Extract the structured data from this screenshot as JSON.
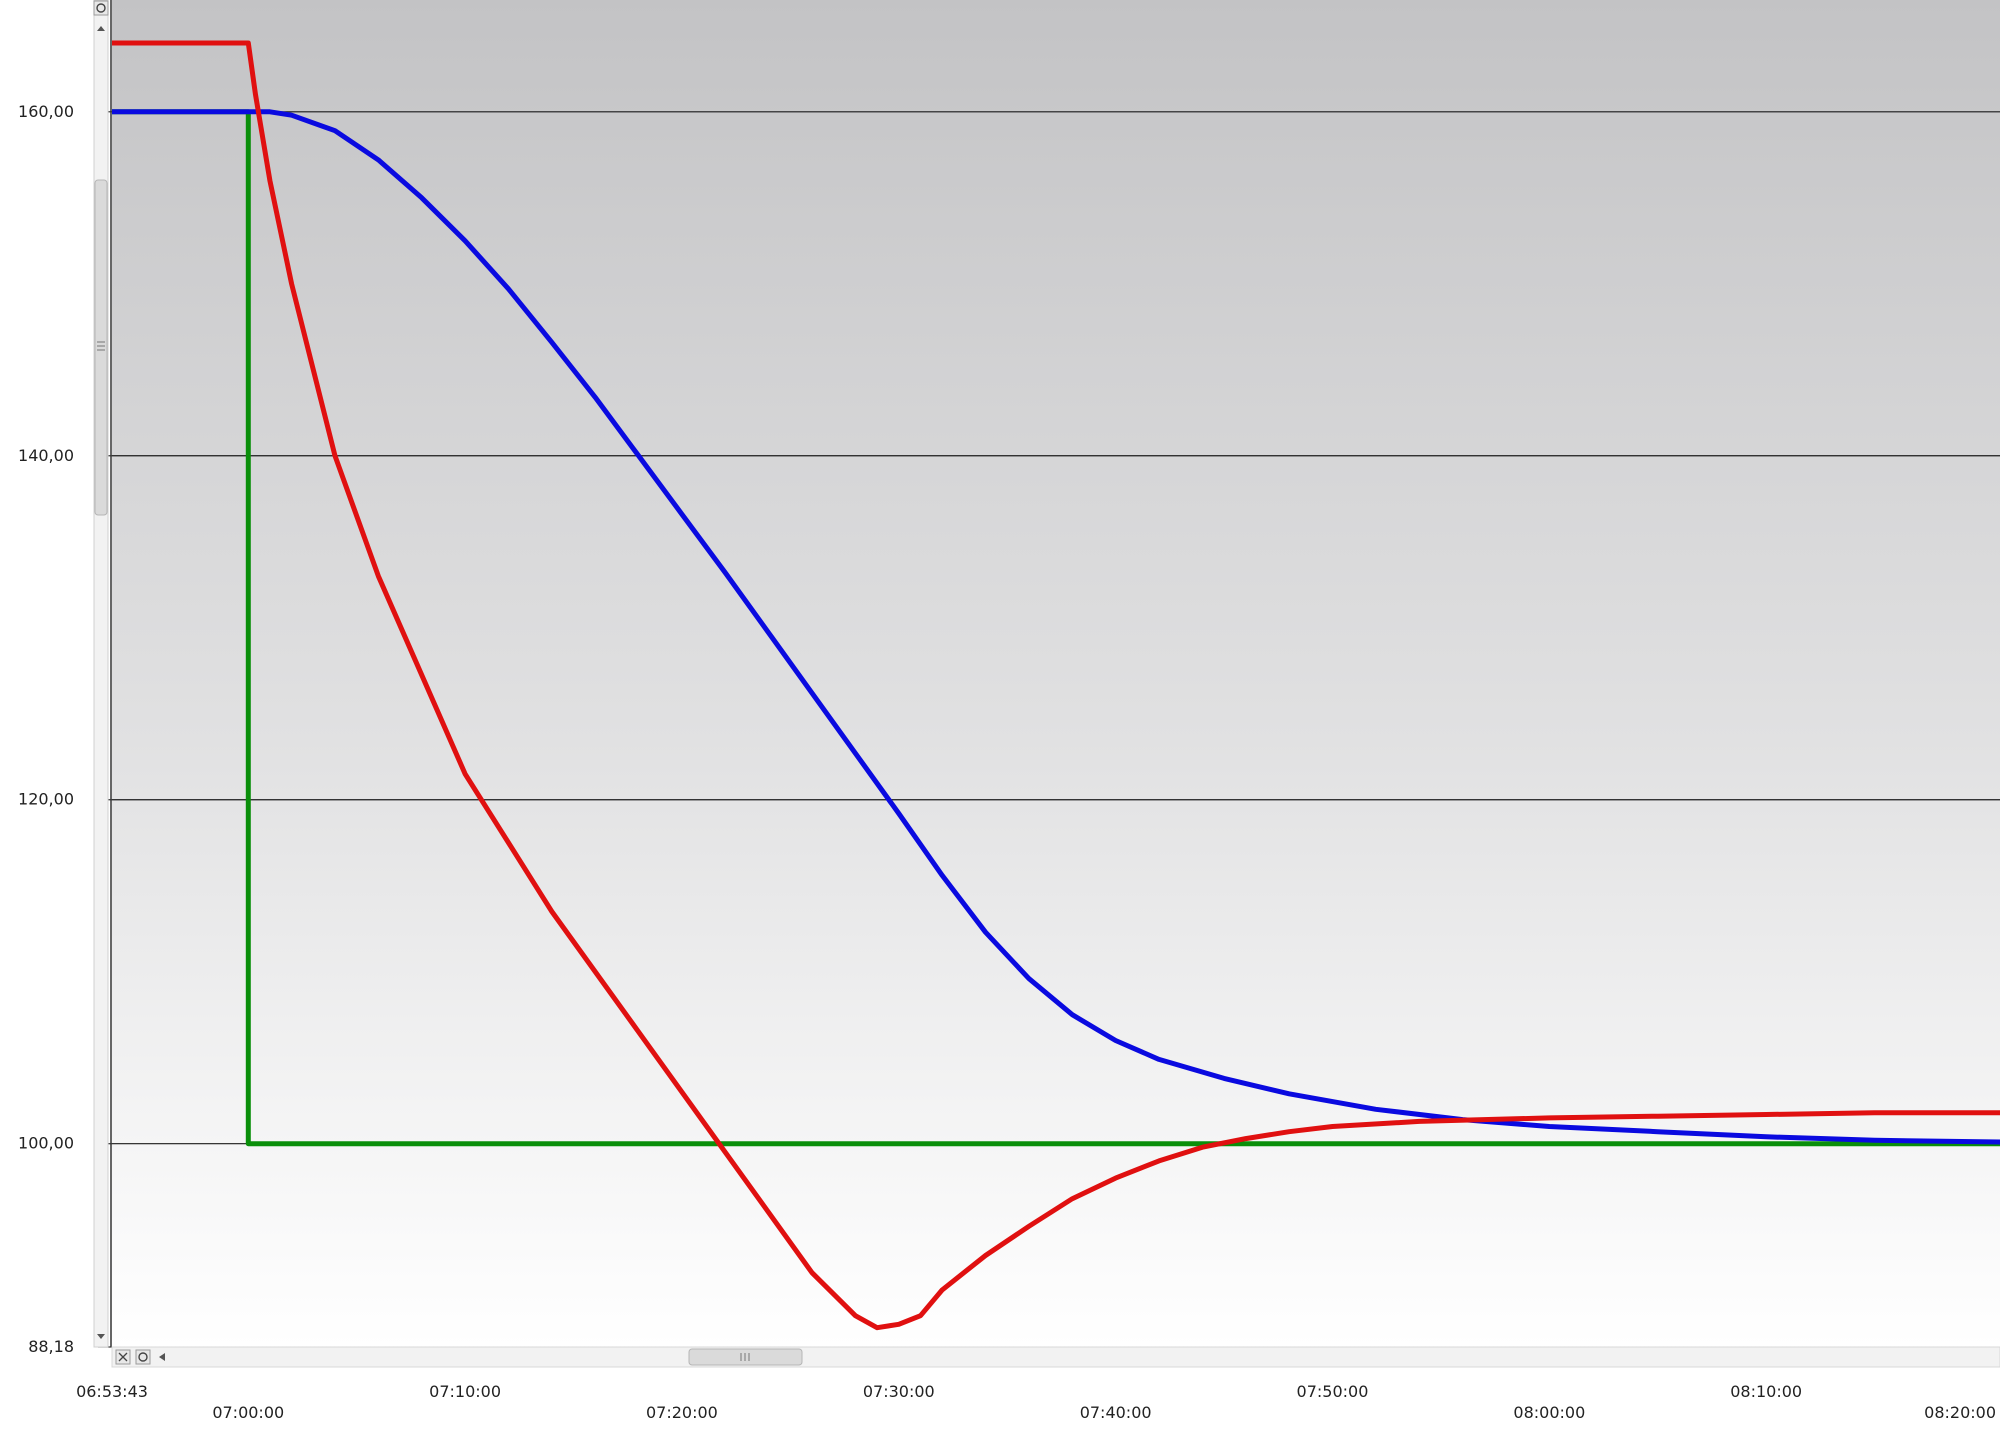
{
  "chart_data": {
    "type": "line",
    "title": "",
    "xlabel": "",
    "ylabel": "",
    "x_start_label": "06:53:43",
    "x_tick_labels": [
      "07:00:00",
      "07:10:00",
      "07:20:00",
      "07:30:00",
      "07:40:00",
      "07:50:00",
      "08:00:00",
      "08:10:00",
      "08:20:00"
    ],
    "xlim": [
      "06:53:43",
      "08:20:47"
    ],
    "y_tick_labels": [
      "88,18",
      "100,00",
      "120,00",
      "140,00",
      "160,00"
    ],
    "y_ticks": [
      88.18,
      100,
      120,
      140,
      160
    ],
    "ylim": [
      88.18,
      166.5
    ],
    "grid": "horizontal",
    "legend": "none",
    "series": [
      {
        "color": "#e01010",
        "x": [
          "06:53:43",
          "07:00:00",
          "07:00:20",
          "07:01:00",
          "07:02:00",
          "07:04:00",
          "07:06:00",
          "07:10:00",
          "07:14:00",
          "07:18:00",
          "07:22:00",
          "07:26:00",
          "07:28:00",
          "07:29:00",
          "07:30:00",
          "07:31:00",
          "07:32:00",
          "07:34:00",
          "07:36:00",
          "07:38:00",
          "07:40:00",
          "07:42:00",
          "07:44:00",
          "07:46:00",
          "07:48:00",
          "07:50:00",
          "07:54:00",
          "08:00:00",
          "08:05:00",
          "08:10:00",
          "08:15:00",
          "08:20:47"
        ],
        "y": [
          164.0,
          164.0,
          161.0,
          156.0,
          150.0,
          140.0,
          133.0,
          121.5,
          113.5,
          106.5,
          99.5,
          92.5,
          90.0,
          89.3,
          89.5,
          90.0,
          91.5,
          93.5,
          95.2,
          96.8,
          98.0,
          99.0,
          99.8,
          100.3,
          100.7,
          101.0,
          101.3,
          101.5,
          101.6,
          101.7,
          101.8,
          101.8
        ]
      },
      {
        "color": "#0a0ae0",
        "x": [
          "06:53:43",
          "07:00:00",
          "07:01:00",
          "07:02:00",
          "07:04:00",
          "07:06:00",
          "07:08:00",
          "07:10:00",
          "07:12:00",
          "07:14:00",
          "07:16:00",
          "07:18:00",
          "07:20:00",
          "07:22:00",
          "07:24:00",
          "07:26:00",
          "07:28:00",
          "07:30:00",
          "07:32:00",
          "07:34:00",
          "07:36:00",
          "07:38:00",
          "07:40:00",
          "07:42:00",
          "07:45:00",
          "07:48:00",
          "07:52:00",
          "07:56:00",
          "08:00:00",
          "08:05:00",
          "08:10:00",
          "08:15:00",
          "08:20:47"
        ],
        "y": [
          160.0,
          160.0,
          160.0,
          159.8,
          158.9,
          157.2,
          155.0,
          152.5,
          149.7,
          146.6,
          143.4,
          140.0,
          136.6,
          133.2,
          129.7,
          126.2,
          122.7,
          119.2,
          115.6,
          112.3,
          109.6,
          107.5,
          106.0,
          104.9,
          103.8,
          102.9,
          102.0,
          101.4,
          101.0,
          100.7,
          100.4,
          100.2,
          100.1
        ]
      },
      {
        "color": "#0a8f0a",
        "x": [
          "06:53:43",
          "07:00:00",
          "07:00:00",
          "08:20:47"
        ],
        "y": [
          160.0,
          160.0,
          100.0,
          100.0
        ]
      }
    ]
  },
  "ui": {
    "accent_scrollbar": "#d7d7d7"
  }
}
